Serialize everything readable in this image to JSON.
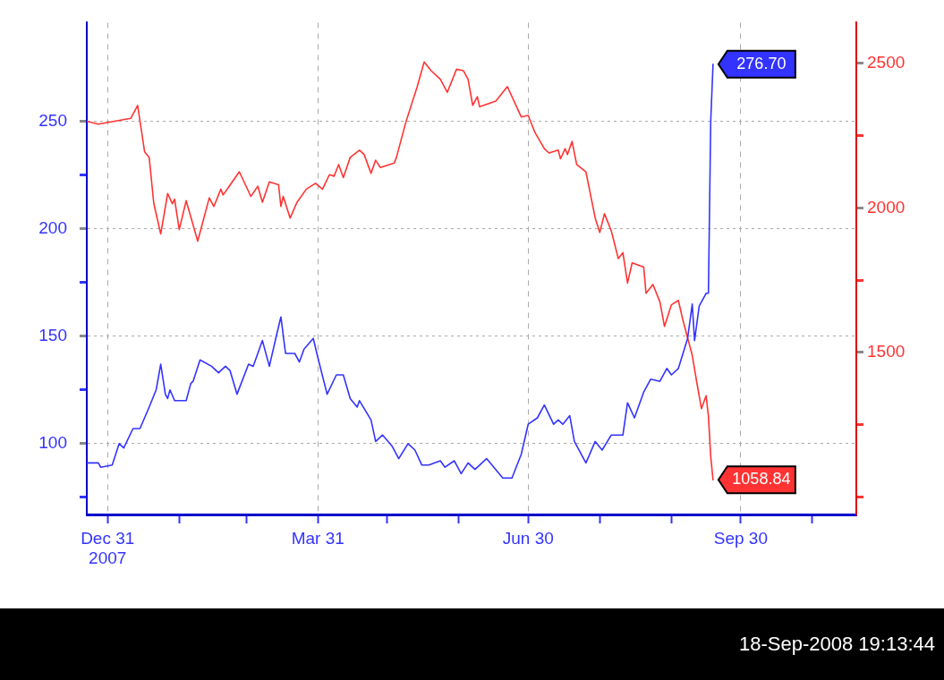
{
  "chart_data": {
    "type": "line",
    "xlim": [
      "2007-12-22",
      "2008-11-19"
    ],
    "ylim": [
      67,
      296
    ],
    "y2lim": [
      939,
      2641
    ],
    "xticks": [
      {
        "value": "2007-12-31",
        "label": "Dec 31\n2007"
      },
      {
        "value": "2008-01-31",
        "label": null
      },
      {
        "value": "2008-02-29",
        "label": null
      },
      {
        "value": "2008-03-31",
        "label": "Mar 31"
      },
      {
        "value": "2008-04-30",
        "label": null
      },
      {
        "value": "2008-05-31",
        "label": null
      },
      {
        "value": "2008-06-30",
        "label": "Jun 30"
      },
      {
        "value": "2008-07-31",
        "label": null
      },
      {
        "value": "2008-08-31",
        "label": null
      },
      {
        "value": "2008-09-30",
        "label": "Sep 30"
      },
      {
        "value": "2008-10-31",
        "label": null
      }
    ],
    "yticks": [
      {
        "value": 75,
        "label": null
      },
      100,
      {
        "value": 125,
        "label": null
      },
      150,
      {
        "value": 175,
        "label": null
      },
      200,
      {
        "value": 225,
        "label": null
      },
      250
    ],
    "y2ticks": [
      {
        "value": 1000,
        "label": null
      },
      {
        "value": 1250,
        "label": null
      },
      1500,
      {
        "value": 1750,
        "label": null
      },
      2000,
      {
        "value": 2250,
        "label": null
      },
      2500
    ],
    "grid": true,
    "marker": "none",
    "line_style": "solid",
    "series": [
      {
        "color": "#3333ff",
        "axis": "y",
        "x": [
          "2007-12-22",
          "2007-12-27",
          "2007-12-28",
          "2008-01-02",
          "2008-01-05",
          "2008-01-07",
          "2008-01-11",
          "2008-01-14",
          "2008-01-18",
          "2008-01-21",
          "2008-01-23",
          "2008-01-25",
          "2008-01-26",
          "2008-01-27",
          "2008-01-29",
          "2008-02-03",
          "2008-02-05",
          "2008-02-06",
          "2008-02-09",
          "2008-02-14",
          "2008-02-17",
          "2008-02-20",
          "2008-02-22",
          "2008-02-25",
          "2008-03-01",
          "2008-03-03",
          "2008-03-07",
          "2008-03-10",
          "2008-03-13",
          "2008-03-15",
          "2008-03-17",
          "2008-03-21",
          "2008-03-23",
          "2008-03-25",
          "2008-03-29",
          "2008-03-31",
          "2008-04-04",
          "2008-04-08",
          "2008-04-11",
          "2008-04-14",
          "2008-04-17",
          "2008-04-18",
          "2008-04-23",
          "2008-04-25",
          "2008-04-28",
          "2008-05-02",
          "2008-05-05",
          "2008-05-09",
          "2008-05-12",
          "2008-05-15",
          "2008-05-18",
          "2008-05-23",
          "2008-05-25",
          "2008-05-29",
          "2008-06-01",
          "2008-06-04",
          "2008-06-07",
          "2008-06-12",
          "2008-06-19",
          "2008-06-23",
          "2008-06-27",
          "2008-06-30",
          "2008-07-04",
          "2008-07-07",
          "2008-07-11",
          "2008-07-13",
          "2008-07-15",
          "2008-07-18",
          "2008-07-20",
          "2008-07-25",
          "2008-07-29",
          "2008-08-01",
          "2008-08-05",
          "2008-08-10",
          "2008-08-12",
          "2008-08-15",
          "2008-08-19",
          "2008-08-22",
          "2008-08-26",
          "2008-08-29",
          "2008-08-31",
          "2008-09-03",
          "2008-09-07",
          "2008-09-09",
          "2008-09-10",
          "2008-09-12",
          "2008-09-15",
          "2008-09-16",
          "2008-09-17",
          "2008-09-18"
        ],
        "values": [
          91,
          91,
          89,
          90,
          100,
          98,
          107,
          107,
          117,
          125,
          137,
          123,
          121,
          125,
          120,
          120,
          128,
          129,
          139,
          136,
          133,
          136,
          134,
          123,
          137,
          136,
          148,
          136,
          150,
          159,
          142,
          142,
          138,
          144,
          149,
          140,
          123,
          132,
          132,
          121,
          117,
          120,
          111,
          101,
          104,
          99,
          93,
          100,
          97,
          90,
          90,
          92,
          89,
          92,
          86,
          91,
          88,
          93,
          84,
          84,
          95,
          109,
          112,
          118,
          109,
          111,
          109,
          113,
          101,
          91,
          101,
          97,
          104,
          104,
          119,
          112,
          124,
          130,
          129,
          135,
          132,
          135,
          149,
          165,
          148,
          164,
          170,
          170,
          250,
          276.7
        ],
        "value_labels": [
          null,
          null,
          null,
          null,
          null,
          null,
          null,
          null,
          null,
          null,
          null,
          null,
          null,
          null,
          null,
          null,
          null,
          null,
          null,
          null,
          null,
          null,
          null,
          null,
          null,
          null,
          null,
          null,
          null,
          null,
          null,
          null,
          null,
          null,
          null,
          null,
          null,
          null,
          null,
          null,
          null,
          null,
          null,
          null,
          null,
          null,
          null,
          null,
          null,
          null,
          null,
          null,
          null,
          null,
          null,
          null,
          null,
          null,
          null,
          null,
          null,
          null,
          null,
          null,
          null,
          null,
          null,
          null,
          null,
          null,
          null,
          null,
          null,
          null,
          null,
          null,
          null,
          null,
          null,
          null,
          null,
          null,
          null,
          null,
          null,
          null,
          null,
          null,
          null,
          "276.70"
        ]
      },
      {
        "color": "#ff3333",
        "axis": "y2",
        "x": [
          "2007-12-22",
          "2007-12-27",
          "2008-01-10",
          "2008-01-13",
          "2008-01-16",
          "2008-01-18",
          "2008-01-20",
          "2008-01-23",
          "2008-01-26",
          "2008-01-28",
          "2008-01-29",
          "2008-01-31",
          "2008-02-03",
          "2008-02-08",
          "2008-02-13",
          "2008-02-15",
          "2008-02-18",
          "2008-02-19",
          "2008-02-26",
          "2008-03-02",
          "2008-03-05",
          "2008-03-07",
          "2008-03-10",
          "2008-03-14",
          "2008-03-15",
          "2008-03-16",
          "2008-03-19",
          "2008-03-22",
          "2008-03-26",
          "2008-03-30",
          "2008-04-02",
          "2008-04-05",
          "2008-04-07",
          "2008-04-09",
          "2008-04-11",
          "2008-04-14",
          "2008-04-18",
          "2008-04-20",
          "2008-04-23",
          "2008-04-25",
          "2008-04-27",
          "2008-05-03",
          "2008-05-04",
          "2008-05-08",
          "2008-05-13",
          "2008-05-16",
          "2008-05-19",
          "2008-05-23",
          "2008-05-26",
          "2008-05-30",
          "2008-06-02",
          "2008-06-04",
          "2008-06-06",
          "2008-06-08",
          "2008-06-09",
          "2008-06-16",
          "2008-06-21",
          "2008-06-27",
          "2008-06-30",
          "2008-07-03",
          "2008-07-07",
          "2008-07-09",
          "2008-07-13",
          "2008-07-14",
          "2008-07-16",
          "2008-07-17",
          "2008-07-19",
          "2008-07-21",
          "2008-07-25",
          "2008-07-29",
          "2008-07-31",
          "2008-08-02",
          "2008-08-05",
          "2008-08-08",
          "2008-08-10",
          "2008-08-12",
          "2008-08-14",
          "2008-08-19",
          "2008-08-20",
          "2008-08-23",
          "2008-08-26",
          "2008-08-28",
          "2008-08-31",
          "2008-09-03",
          "2008-09-05",
          "2008-09-09",
          "2008-09-11",
          "2008-09-13",
          "2008-09-15",
          "2008-09-16",
          "2008-09-17",
          "2008-09-18"
        ],
        "values": [
          2300,
          2290,
          2310,
          2355,
          2195,
          2175,
          2015,
          1910,
          2050,
          2015,
          2030,
          1925,
          2025,
          1885,
          2035,
          2005,
          2065,
          2045,
          2125,
          2040,
          2075,
          2020,
          2090,
          2080,
          2005,
          2040,
          1965,
          2020,
          2065,
          2085,
          2065,
          2115,
          2110,
          2150,
          2105,
          2175,
          2200,
          2185,
          2120,
          2165,
          2140,
          2155,
          2175,
          2295,
          2420,
          2505,
          2475,
          2445,
          2400,
          2480,
          2475,
          2445,
          2355,
          2385,
          2350,
          2370,
          2420,
          2315,
          2320,
          2260,
          2205,
          2190,
          2200,
          2170,
          2205,
          2185,
          2230,
          2150,
          2125,
          1965,
          1915,
          1980,
          1920,
          1825,
          1845,
          1740,
          1810,
          1795,
          1705,
          1735,
          1675,
          1590,
          1665,
          1680,
          1610,
          1490,
          1395,
          1305,
          1350,
          1280,
          1140,
          1058.84
        ],
        "value_labels": [
          null,
          null,
          null,
          null,
          null,
          null,
          null,
          null,
          null,
          null,
          null,
          null,
          null,
          null,
          null,
          null,
          null,
          null,
          null,
          null,
          null,
          null,
          null,
          null,
          null,
          null,
          null,
          null,
          null,
          null,
          null,
          null,
          null,
          null,
          null,
          null,
          null,
          null,
          null,
          null,
          null,
          null,
          null,
          null,
          null,
          null,
          null,
          null,
          null,
          null,
          null,
          null,
          null,
          null,
          null,
          null,
          null,
          null,
          null,
          null,
          null,
          null,
          null,
          null,
          null,
          null,
          null,
          null,
          null,
          null,
          null,
          null,
          null,
          null,
          null,
          null,
          null,
          null,
          null,
          null,
          null,
          null,
          null,
          null,
          null,
          null,
          null,
          null,
          null,
          null,
          null,
          "1058.84"
        ]
      }
    ],
    "annotations": [
      "18-Sep-2008 19:13:44"
    ]
  }
}
